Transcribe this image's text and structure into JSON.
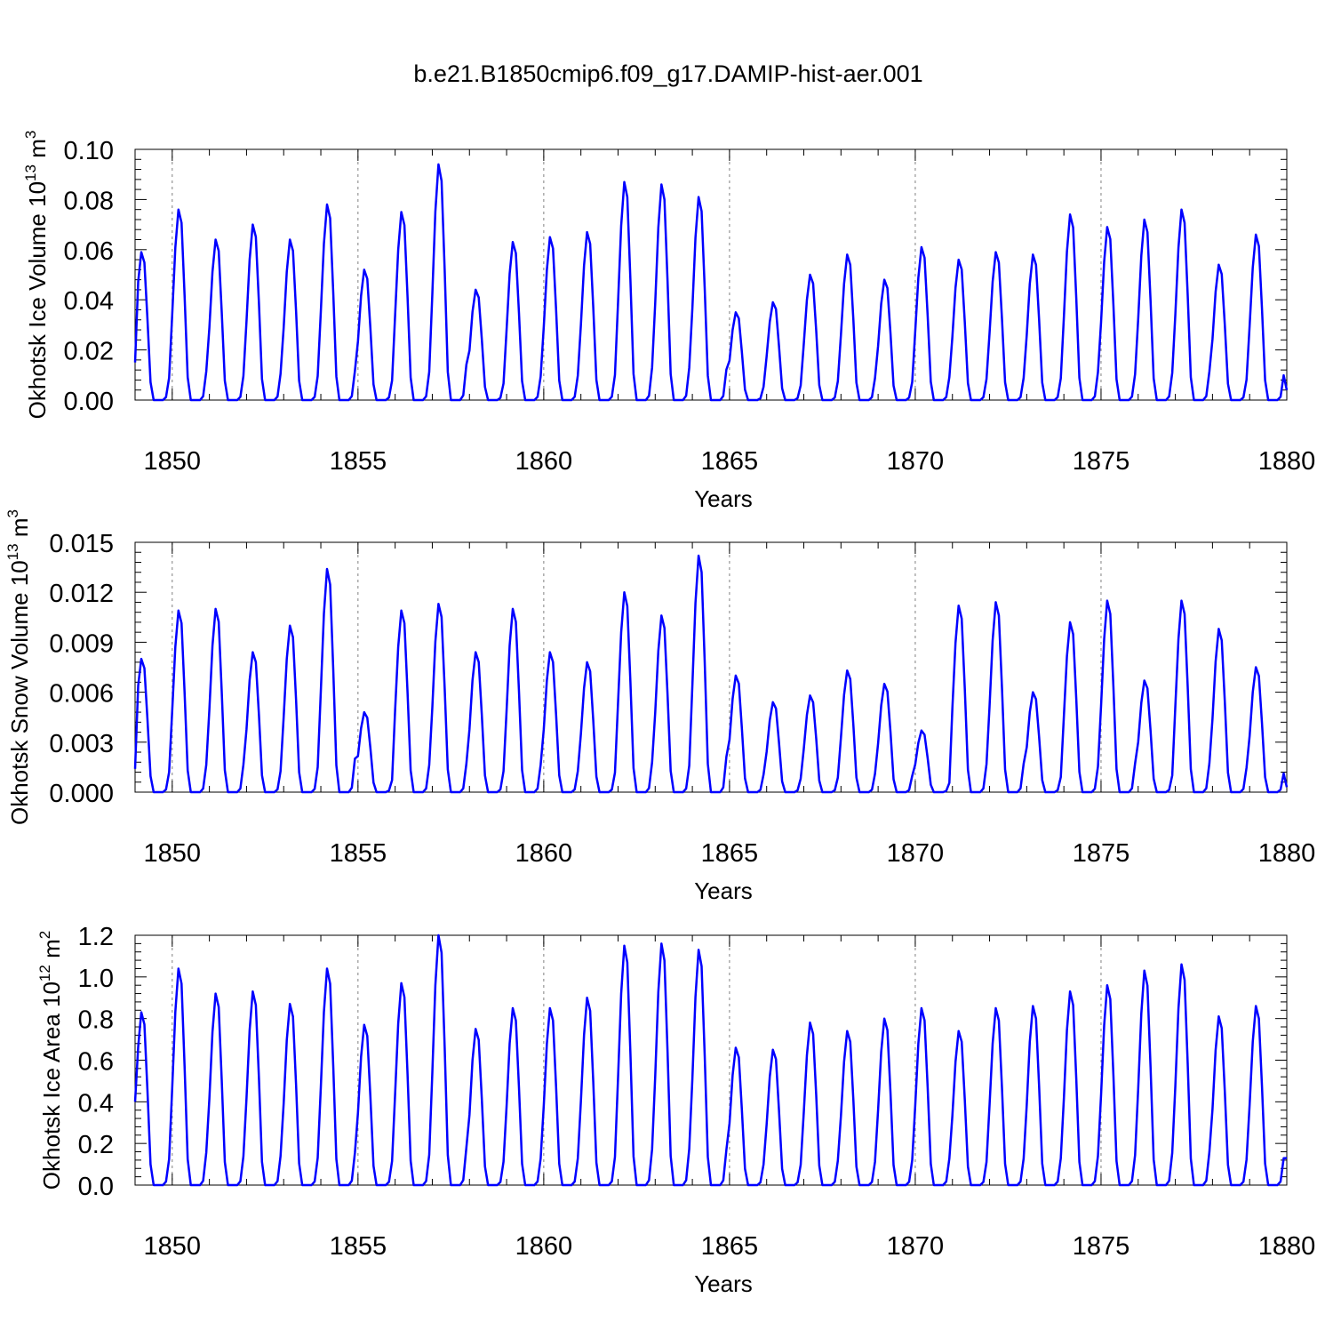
{
  "title": "b.e21.B1850cmip6.f09_g17.DAMIP-hist-aer.001",
  "colors": {
    "line": "#0000ff",
    "grid": "#808080",
    "axis": "#000000"
  },
  "chart_data": [
    {
      "type": "line",
      "ylabel": "Okhotsk Ice Volume",
      "ylabel_unit_base": "10",
      "ylabel_unit_exp": "13",
      "ylabel_unit": "m",
      "ylabel_unit_sup": "3",
      "xlabel": "Years",
      "xlim": [
        1849,
        1880
      ],
      "ylim": [
        0,
        0.1
      ],
      "xticks": [
        1850,
        1855,
        1860,
        1865,
        1870,
        1875,
        1880
      ],
      "xtick_labels": [
        "1850",
        "1855",
        "1860",
        "1865",
        "1870",
        "1875",
        "1880"
      ],
      "yticks": [
        0,
        0.02,
        0.04,
        0.06,
        0.08,
        0.1
      ],
      "ytick_labels": [
        "0.00",
        "0.02",
        "0.04",
        "0.06",
        "0.08",
        "0.10"
      ],
      "grid_years": [
        1850,
        1855,
        1860,
        1865,
        1870,
        1875
      ],
      "start_value": 0.015,
      "end_value": 0.004,
      "annual_peaks": [
        0.059,
        0.076,
        0.064,
        0.07,
        0.064,
        0.078,
        0.052,
        0.075,
        0.094,
        0.044,
        0.063,
        0.065,
        0.067,
        0.087,
        0.086,
        0.081,
        0.035,
        0.039,
        0.05,
        0.058,
        0.048,
        0.061,
        0.056,
        0.059,
        0.058,
        0.074,
        0.069,
        0.072,
        0.076,
        0.054,
        0.066
      ]
    },
    {
      "type": "line",
      "ylabel": "Okhotsk Snow Volume",
      "ylabel_unit_base": "10",
      "ylabel_unit_exp": "13",
      "ylabel_unit": "m",
      "ylabel_unit_sup": "3",
      "xlabel": "Years",
      "xlim": [
        1849,
        1880
      ],
      "ylim": [
        0,
        0.015
      ],
      "xticks": [
        1850,
        1855,
        1860,
        1865,
        1870,
        1875,
        1880
      ],
      "xtick_labels": [
        "1850",
        "1855",
        "1860",
        "1865",
        "1870",
        "1875",
        "1880"
      ],
      "yticks": [
        0,
        0.003,
        0.006,
        0.009,
        0.012,
        0.015
      ],
      "ytick_labels": [
        "0.000",
        "0.003",
        "0.006",
        "0.009",
        "0.012",
        "0.015"
      ],
      "grid_years": [
        1850,
        1855,
        1860,
        1865,
        1870,
        1875
      ],
      "start_value": 0.0014,
      "end_value": 0.0003,
      "annual_peaks": [
        0.008,
        0.0109,
        0.011,
        0.0084,
        0.01,
        0.0134,
        0.0048,
        0.0109,
        0.0113,
        0.0084,
        0.011,
        0.0084,
        0.0078,
        0.012,
        0.0106,
        0.0142,
        0.007,
        0.0054,
        0.0058,
        0.0073,
        0.0065,
        0.0037,
        0.0112,
        0.0114,
        0.006,
        0.0102,
        0.0115,
        0.0067,
        0.0115,
        0.0098,
        0.0075
      ]
    },
    {
      "type": "line",
      "ylabel": "Okhotsk Ice Area",
      "ylabel_unit_base": "10",
      "ylabel_unit_exp": "12",
      "ylabel_unit": "m",
      "ylabel_unit_sup": "2",
      "xlabel": "Years",
      "xlim": [
        1849,
        1880
      ],
      "ylim": [
        0,
        1.2
      ],
      "xticks": [
        1850,
        1855,
        1860,
        1865,
        1870,
        1875,
        1880
      ],
      "xtick_labels": [
        "1850",
        "1855",
        "1860",
        "1865",
        "1870",
        "1875",
        "1880"
      ],
      "yticks": [
        0,
        0.2,
        0.4,
        0.6,
        0.8,
        1.0,
        1.2
      ],
      "ytick_labels": [
        "0.0",
        "0.2",
        "0.4",
        "0.6",
        "0.8",
        "1.0",
        "1.2"
      ],
      "grid_years": [
        1850,
        1855,
        1860,
        1865,
        1870,
        1875
      ],
      "start_value": 0.4,
      "end_value": 0.13,
      "annual_peaks": [
        0.83,
        1.04,
        0.92,
        0.93,
        0.87,
        1.04,
        0.77,
        0.97,
        1.2,
        0.75,
        0.85,
        0.85,
        0.9,
        1.15,
        1.16,
        1.13,
        0.66,
        0.65,
        0.78,
        0.74,
        0.8,
        0.85,
        0.74,
        0.85,
        0.86,
        0.93,
        0.96,
        1.03,
        1.06,
        0.81,
        0.86
      ]
    }
  ]
}
